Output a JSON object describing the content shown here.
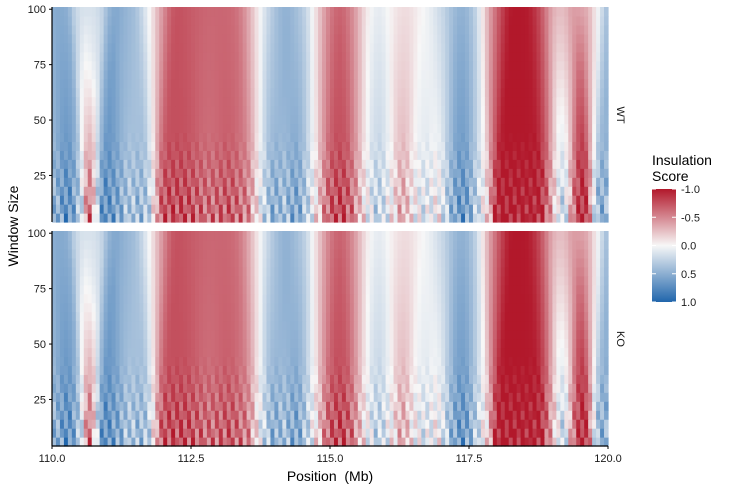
{
  "chart_data": {
    "type": "heatmap",
    "xlabel": "Position  (Mb)",
    "ylabel": "Window Size",
    "xlim": [
      110.0,
      120.0
    ],
    "ylim": [
      4,
      101
    ],
    "x_ticks": [
      110.0,
      112.5,
      115.0,
      117.5,
      120.0
    ],
    "x_tick_labels": [
      "110.0",
      "112.5",
      "115.0",
      "117.5",
      "120.0"
    ],
    "y_ticks": [
      25,
      50,
      75,
      100
    ],
    "y_tick_labels": [
      "25",
      "50",
      "75",
      "100"
    ],
    "panels": [
      {
        "label": "WT"
      },
      {
        "label": "KO"
      }
    ],
    "legend": {
      "title_lines": [
        "Insulation",
        "Score"
      ],
      "placement": "right",
      "reversed": true,
      "ticks": [
        -1.0,
        -0.5,
        0.0,
        0.5,
        1.0
      ],
      "tick_labels": [
        "-1.0",
        "-0.5",
        "0.0",
        "0.5",
        "1.0"
      ],
      "colors": {
        "low": "#b2182b",
        "mid": "#f7f7f7",
        "high": "#2166ac"
      }
    },
    "value_range": [
      -1.0,
      1.0
    ],
    "insulation_profile": {
      "x": [
        110.0,
        110.3,
        110.55,
        110.65,
        110.9,
        111.2,
        111.4,
        111.55,
        111.75,
        111.92,
        112.0,
        112.4,
        112.8,
        113.2,
        113.55,
        113.75,
        114.0,
        114.15,
        114.4,
        114.6,
        114.8,
        114.95,
        115.2,
        115.4,
        115.6,
        115.85,
        116.1,
        116.3,
        116.45,
        116.7,
        116.95,
        117.2,
        117.4,
        117.6,
        117.85,
        118.0,
        118.3,
        118.6,
        118.8,
        119.0,
        119.2,
        119.4,
        119.6,
        119.8,
        120.0
      ],
      "score": [
        0.4,
        0.75,
        0.2,
        -0.85,
        0.75,
        0.55,
        0.3,
        0.45,
        0.3,
        -0.55,
        -0.75,
        -0.75,
        -0.6,
        -0.7,
        -0.5,
        0.1,
        0.55,
        0.35,
        0.6,
        0.25,
        -0.2,
        -0.65,
        -0.8,
        -0.6,
        -0.1,
        0.3,
        0.0,
        -0.4,
        -0.1,
        0.15,
        -0.05,
        0.5,
        0.7,
        0.35,
        -0.2,
        -1.0,
        -1.0,
        -1.0,
        -0.95,
        -0.3,
        0.35,
        -0.7,
        -1.0,
        0.5,
        0.45
      ],
      "ko_score": [
        0.4,
        0.75,
        0.2,
        -0.85,
        0.75,
        0.55,
        0.3,
        0.45,
        0.3,
        -0.55,
        -0.75,
        -0.75,
        -0.6,
        -0.7,
        -0.5,
        0.1,
        0.55,
        0.35,
        0.6,
        0.25,
        -0.2,
        -0.65,
        -0.8,
        -0.6,
        -0.1,
        0.3,
        0.0,
        -0.4,
        -0.1,
        0.15,
        -0.05,
        0.5,
        0.7,
        0.35,
        -0.2,
        -1.0,
        -1.0,
        -1.0,
        -0.95,
        -0.3,
        0.35,
        -0.7,
        -1.0,
        0.45,
        0.5
      ]
    }
  }
}
